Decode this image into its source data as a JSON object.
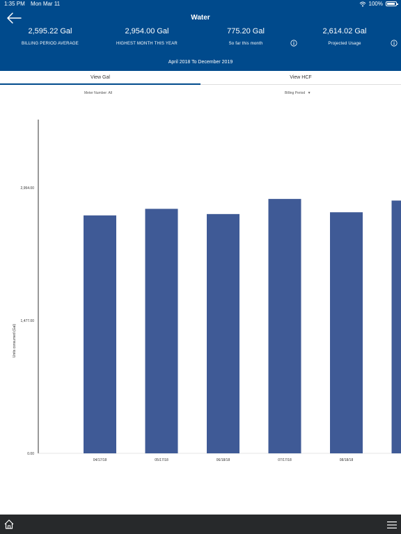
{
  "status_bar": {
    "time": "1:35 PM",
    "date": "Mon Mar 11",
    "battery": "100%"
  },
  "header": {
    "title": "Water",
    "stats": [
      {
        "value": "2,595.22 Gal",
        "label": "BILLING PERIOD AVERAGE"
      },
      {
        "value": "2,954.00 Gal",
        "label": "HIGHEST MONTH THIS YEAR"
      },
      {
        "value": "775.20 Gal",
        "label": "So far this month"
      },
      {
        "value": "2,614.02 Gal",
        "label": "Projected Usage"
      }
    ],
    "date_range": "April 2018 To December 2019"
  },
  "tabs": {
    "gal": "View Gal",
    "hcf": "View HCF"
  },
  "filters": {
    "meter": "Meter Number: All",
    "billing": "Billing Period"
  },
  "icons": {
    "back": "arrow-left-icon",
    "info": "info-icon",
    "home": "home-icon",
    "menu": "hamburger-menu-icon"
  },
  "colors": {
    "header": "#004a8c",
    "bar": "#3f5a96",
    "bottom_bar": "#27292b",
    "tab_underline": "#004a8c"
  },
  "chart_data": {
    "type": "bar",
    "categories": [
      "04/17/18",
      "05/17/18",
      "06/18/18",
      "07/17/18",
      "08/18/18",
      ""
    ],
    "values": [
      2645,
      2718,
      2660,
      2828,
      2680,
      2810
    ],
    "ylabel": "Units consumed (Gal)",
    "yticks": [
      "0.00",
      "1,477.00",
      "2,954.00"
    ],
    "ylim": [
      0,
      3710
    ]
  }
}
